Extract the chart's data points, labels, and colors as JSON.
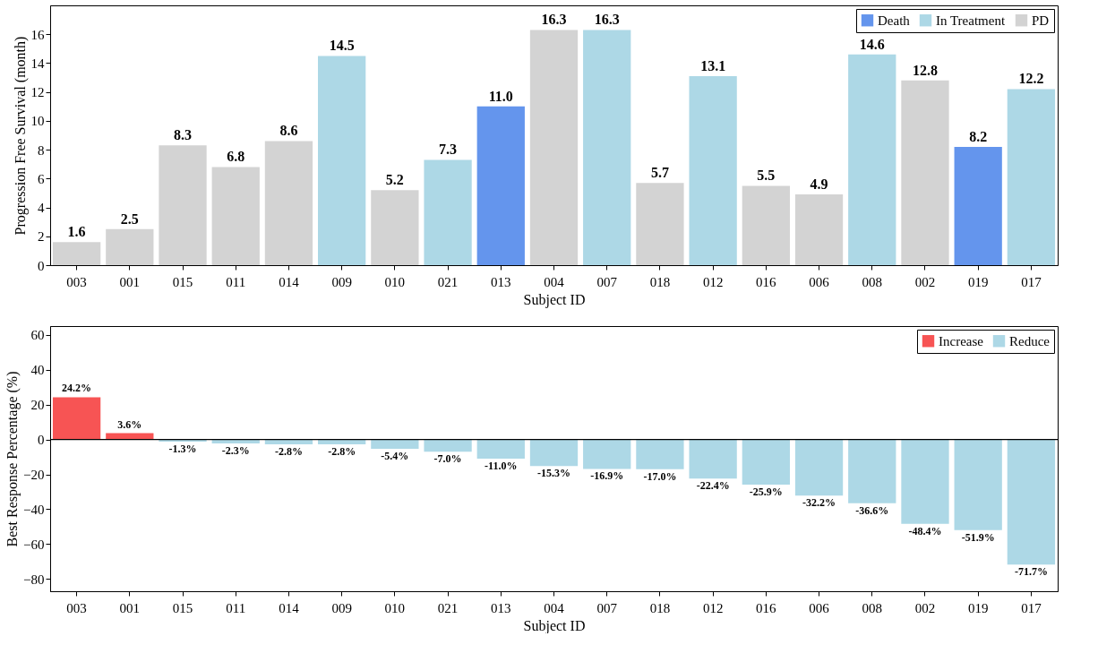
{
  "chart_data": [
    {
      "type": "bar",
      "xlabel": "Subject ID",
      "ylabel": "Progression Free Survival (month)",
      "categories": [
        "003",
        "001",
        "015",
        "011",
        "014",
        "009",
        "010",
        "021",
        "013",
        "004",
        "007",
        "018",
        "012",
        "016",
        "006",
        "008",
        "002",
        "019",
        "017"
      ],
      "series": [
        {
          "name": "Death",
          "color": "#6495ed",
          "values": [
            null,
            null,
            null,
            null,
            null,
            null,
            null,
            null,
            11.0,
            null,
            null,
            null,
            null,
            null,
            null,
            null,
            null,
            8.2,
            null
          ],
          "value_labels": [
            null,
            null,
            null,
            null,
            null,
            null,
            null,
            null,
            "11.0",
            null,
            null,
            null,
            null,
            null,
            null,
            null,
            null,
            "8.2",
            null
          ]
        },
        {
          "name": "In Treatment",
          "color": "#add8e6",
          "values": [
            null,
            null,
            null,
            null,
            null,
            14.5,
            null,
            7.3,
            null,
            null,
            16.3,
            null,
            13.1,
            null,
            null,
            14.6,
            null,
            null,
            12.2
          ]
        },
        {
          "name": "PD",
          "color": "#d3d3d3",
          "values": [
            1.6,
            2.5,
            8.3,
            6.8,
            8.6,
            null,
            5.2,
            null,
            null,
            16.3,
            null,
            5.7,
            null,
            5.5,
            4.9,
            null,
            12.8,
            null,
            null
          ]
        }
      ],
      "ylim": [
        0,
        18
      ],
      "yticks": [
        0,
        2,
        4,
        6,
        8,
        10,
        12,
        14,
        16
      ],
      "data_labels": true,
      "legend": "top right"
    },
    {
      "type": "bar",
      "xlabel": "Subject ID",
      "ylabel": "Best Response Percentage (%)",
      "categories": [
        "003",
        "001",
        "015",
        "011",
        "014",
        "009",
        "010",
        "021",
        "013",
        "004",
        "007",
        "018",
        "012",
        "016",
        "006",
        "008",
        "002",
        "019",
        "017"
      ],
      "series": [
        {
          "name": "Increase",
          "color": "#f75454",
          "values": [
            24.2,
            3.6,
            null,
            null,
            null,
            null,
            null,
            null,
            null,
            null,
            null,
            null,
            null,
            null,
            null,
            null,
            null,
            null,
            null
          ],
          "value_labels": [
            "24.2%",
            "3.6%",
            null,
            null,
            null,
            null,
            null,
            null,
            null,
            null,
            null,
            null,
            null,
            null,
            null,
            null,
            null,
            null,
            null
          ]
        },
        {
          "name": "Reduce",
          "color": "#add8e6",
          "values": [
            null,
            null,
            -1.3,
            -2.3,
            -2.8,
            -2.8,
            -5.4,
            -7.0,
            -11.0,
            -15.3,
            -16.9,
            -17.0,
            -22.4,
            -25.9,
            -32.2,
            -36.6,
            -48.4,
            -51.9,
            -71.7
          ],
          "value_labels": [
            null,
            null,
            "-1.3%",
            "-2.3%",
            "-2.8%",
            "-2.8%",
            "-5.4%",
            "-7.0%",
            "-11.0%",
            "-15.3%",
            "-16.9%",
            "-17.0%",
            "-22.4%",
            "-25.9%",
            "-32.2%",
            "-36.6%",
            "-48.4%",
            "-51.9%",
            "-71.7%"
          ]
        }
      ],
      "ylim": [
        -87,
        65
      ],
      "yticks": [
        -80,
        -60,
        -40,
        -20,
        0,
        20,
        40,
        60
      ],
      "legend": "top right",
      "ref_lines": [
        {
          "axis": "y",
          "value": 0,
          "color": "#000000"
        }
      ]
    }
  ]
}
